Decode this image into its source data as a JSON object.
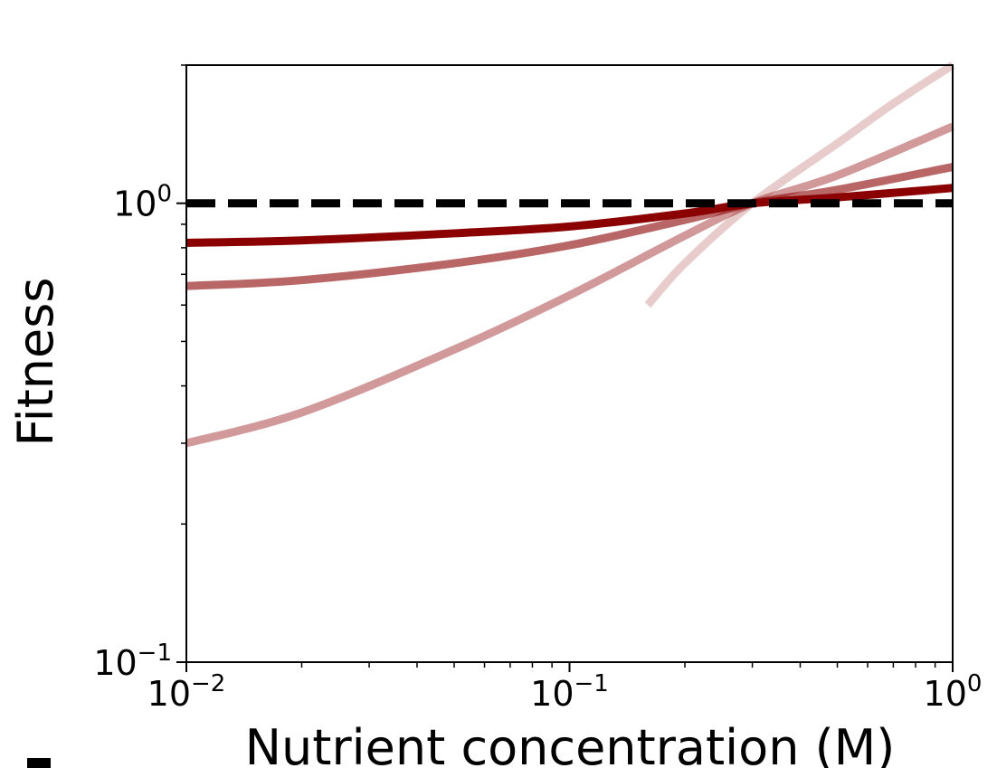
{
  "chart_data": {
    "type": "line",
    "xlabel": "Nutrient concentration (M)",
    "ylabel": "Fitness",
    "xscale": "log",
    "yscale": "log",
    "xlim": [
      0.01,
      1
    ],
    "ylim": [
      0.1,
      2
    ],
    "x_ticks": [
      {
        "value": 0.01,
        "base": "10",
        "exp": "−2"
      },
      {
        "value": 0.1,
        "base": "10",
        "exp": "−1"
      },
      {
        "value": 1,
        "base": "10",
        "exp": "0"
      }
    ],
    "y_ticks": [
      {
        "value": 0.1,
        "base": "10",
        "exp": "−1"
      },
      {
        "value": 1,
        "base": "10",
        "exp": "0"
      }
    ],
    "reference_line": {
      "y": 1,
      "style": "dashed",
      "color": "#000000"
    },
    "series": [
      {
        "color": "#8b0000",
        "opacity": 1.0,
        "x": [
          0.01,
          0.02,
          0.05,
          0.1,
          0.2,
          0.3,
          0.5,
          1.0
        ],
        "y": [
          0.82,
          0.83,
          0.86,
          0.89,
          0.95,
          1.0,
          1.03,
          1.08
        ]
      },
      {
        "color": "#8b0000",
        "opacity": 0.6,
        "x": [
          0.01,
          0.02,
          0.05,
          0.1,
          0.2,
          0.3,
          0.5,
          1.0
        ],
        "y": [
          0.66,
          0.68,
          0.74,
          0.81,
          0.92,
          1.0,
          1.07,
          1.2
        ]
      },
      {
        "color": "#8b0000",
        "opacity": 0.4,
        "x": [
          0.01,
          0.02,
          0.05,
          0.1,
          0.2,
          0.3,
          0.5,
          1.0
        ],
        "y": [
          0.3,
          0.35,
          0.48,
          0.63,
          0.85,
          1.0,
          1.15,
          1.47
        ]
      },
      {
        "color": "#8b0000",
        "opacity": 0.2,
        "x": [
          0.16,
          0.2,
          0.3,
          0.5,
          0.7,
          1.0
        ],
        "y": [
          0.6,
          0.74,
          1.0,
          1.35,
          1.65,
          2.0
        ]
      }
    ]
  }
}
